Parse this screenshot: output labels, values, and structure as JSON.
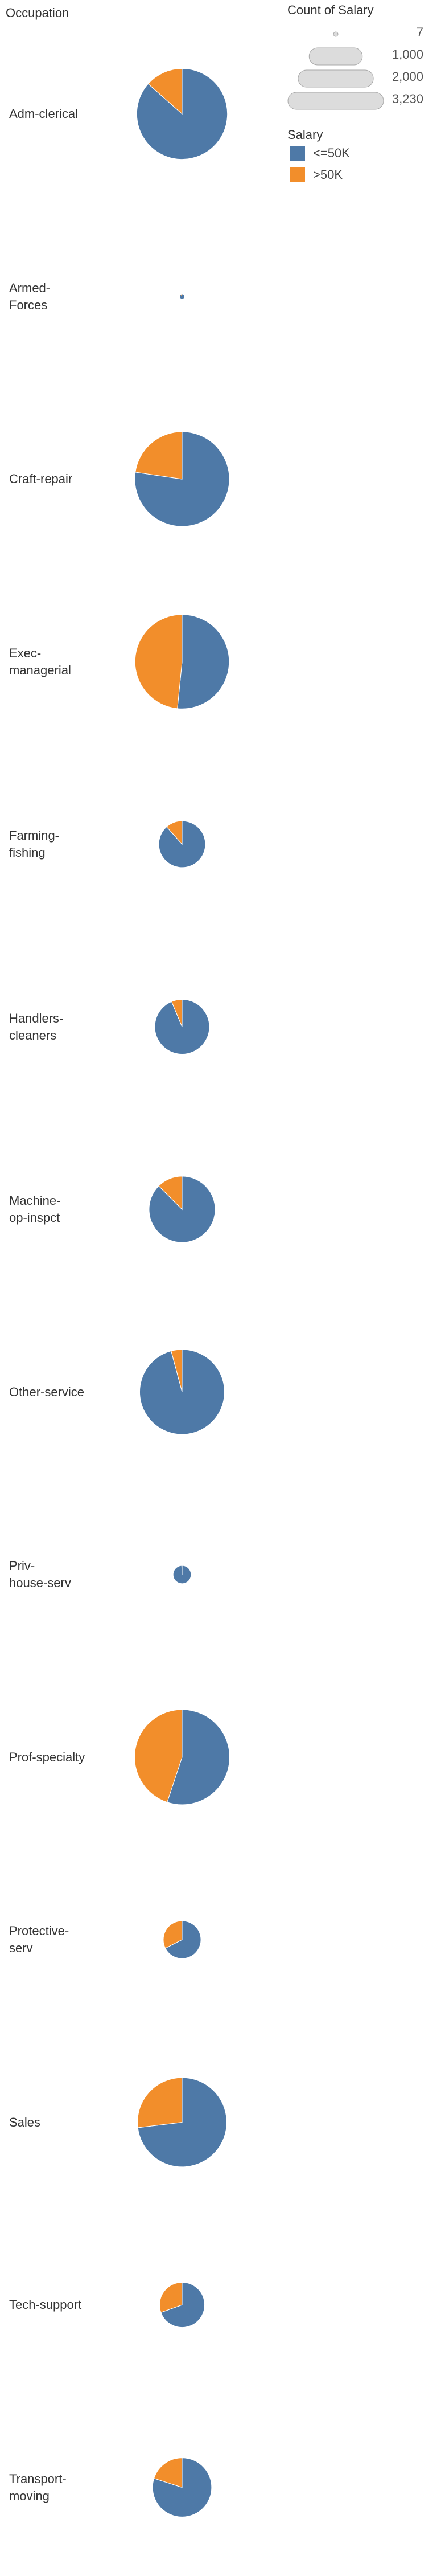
{
  "header": {
    "occupation_label": "Occupation"
  },
  "legend": {
    "size_title": "Count of Salary",
    "size_entries": [
      "7",
      "1,000",
      "2,000",
      "3,230"
    ],
    "color_title": "Salary",
    "color_entries": [
      {
        "label": "<=50K",
        "color": "#4e79a7"
      },
      {
        "label": ">50K",
        "color": "#f28e2b"
      }
    ]
  },
  "chart_data": {
    "type": "pie",
    "size_measure": "Count of Salary",
    "color_field": "Salary",
    "rows": [
      {
        "occupation": "Adm-clerical",
        "values": [
          3260,
          507
        ]
      },
      {
        "occupation": "Armed-Forces",
        "values": [
          8,
          1
        ]
      },
      {
        "occupation": "Craft-repair",
        "values": [
          3170,
          929
        ]
      },
      {
        "occupation": "Exec-managerial",
        "values": [
          2098,
          1968
        ]
      },
      {
        "occupation": "Farming-fishing",
        "values": [
          879,
          115
        ]
      },
      {
        "occupation": "Handlers-cleaners",
        "values": [
          1284,
          86
        ]
      },
      {
        "occupation": "Machine-op-inspct",
        "values": [
          1752,
          250
        ]
      },
      {
        "occupation": "Other-service",
        "values": [
          3158,
          137
        ]
      },
      {
        "occupation": "Priv-house-serv",
        "values": [
          148,
          1
        ]
      },
      {
        "occupation": "Prof-specialty",
        "values": [
          2281,
          1859
        ]
      },
      {
        "occupation": "Protective-serv",
        "values": [
          438,
          211
        ]
      },
      {
        "occupation": "Sales",
        "values": [
          2667,
          983
        ]
      },
      {
        "occupation": "Tech-support",
        "values": [
          645,
          283
        ]
      },
      {
        "occupation": "Transport-moving",
        "values": [
          1277,
          320
        ]
      }
    ],
    "series": [
      {
        "name": "<=50K",
        "color": "#4e79a7"
      },
      {
        "name": ">50K",
        "color": "#f28e2b"
      }
    ],
    "size_legend": [
      7,
      1000,
      2000,
      3230
    ]
  }
}
